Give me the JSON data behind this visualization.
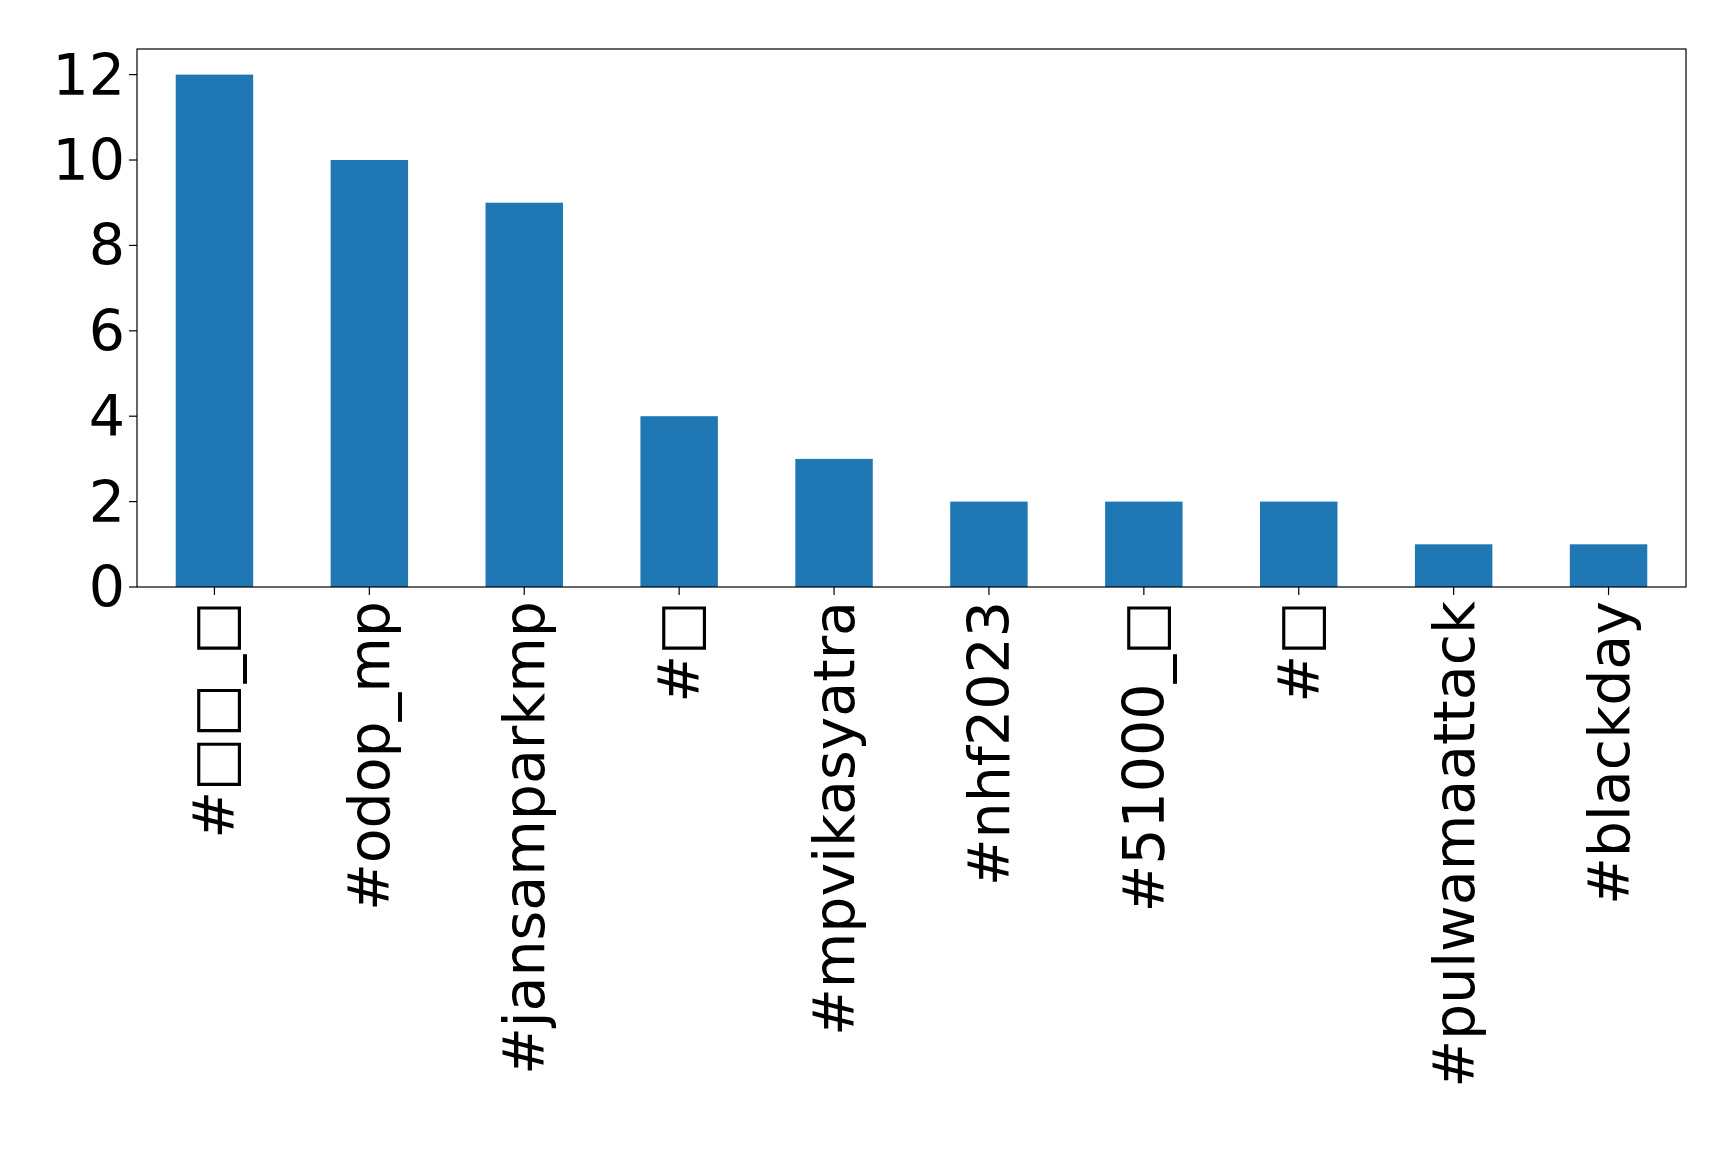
{
  "chart_data": {
    "type": "bar",
    "categories": [
      "#□□_□",
      "#odop_mp",
      "#jansamparkmp",
      "#□",
      "#mpvikasyatra",
      "#nhf2023",
      "#51000_□",
      "#□",
      "#pulwamaattack",
      "#blackday"
    ],
    "values": [
      12,
      10,
      9,
      4,
      3,
      2,
      2,
      2,
      1,
      1
    ],
    "color": "#1f77b4",
    "ylim": [
      0,
      12.6
    ],
    "yticks": [
      0,
      2,
      4,
      6,
      8,
      10,
      12
    ],
    "grid": false
  }
}
